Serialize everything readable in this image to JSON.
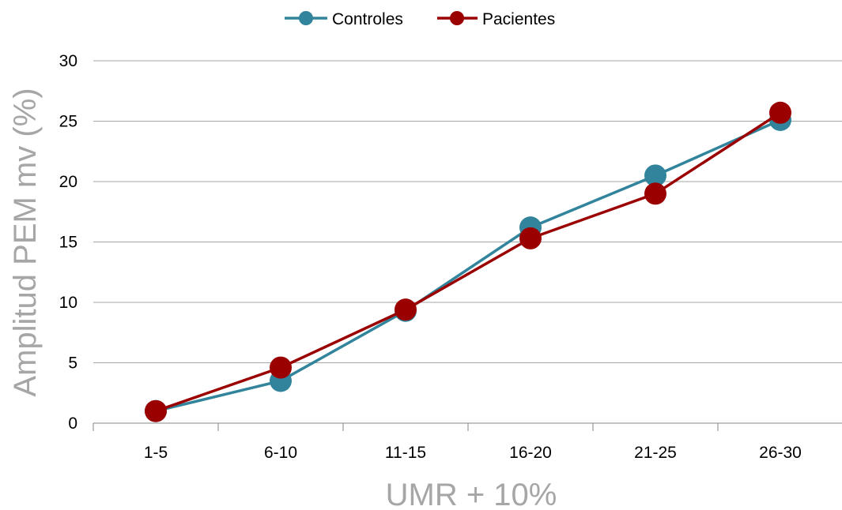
{
  "chart_data": {
    "type": "line",
    "title": "",
    "xlabel": "UMR + 10%",
    "ylabel": "Amplitud PEM mv (%)",
    "categories": [
      "1-5",
      "6-10",
      "11-15",
      "16-20",
      "21-25",
      "26-30"
    ],
    "ylim": [
      0,
      30
    ],
    "yticks": [
      0,
      5,
      10,
      15,
      20,
      25,
      30
    ],
    "grid": true,
    "legend_position": "top",
    "series": [
      {
        "name": "Controles",
        "color": "#31849b",
        "values": [
          1.0,
          3.5,
          9.3,
          16.2,
          20.5,
          25.1
        ]
      },
      {
        "name": "Pacientes",
        "color": "#9b0000",
        "values": [
          1.0,
          4.6,
          9.4,
          15.3,
          19.0,
          25.7
        ]
      }
    ]
  }
}
